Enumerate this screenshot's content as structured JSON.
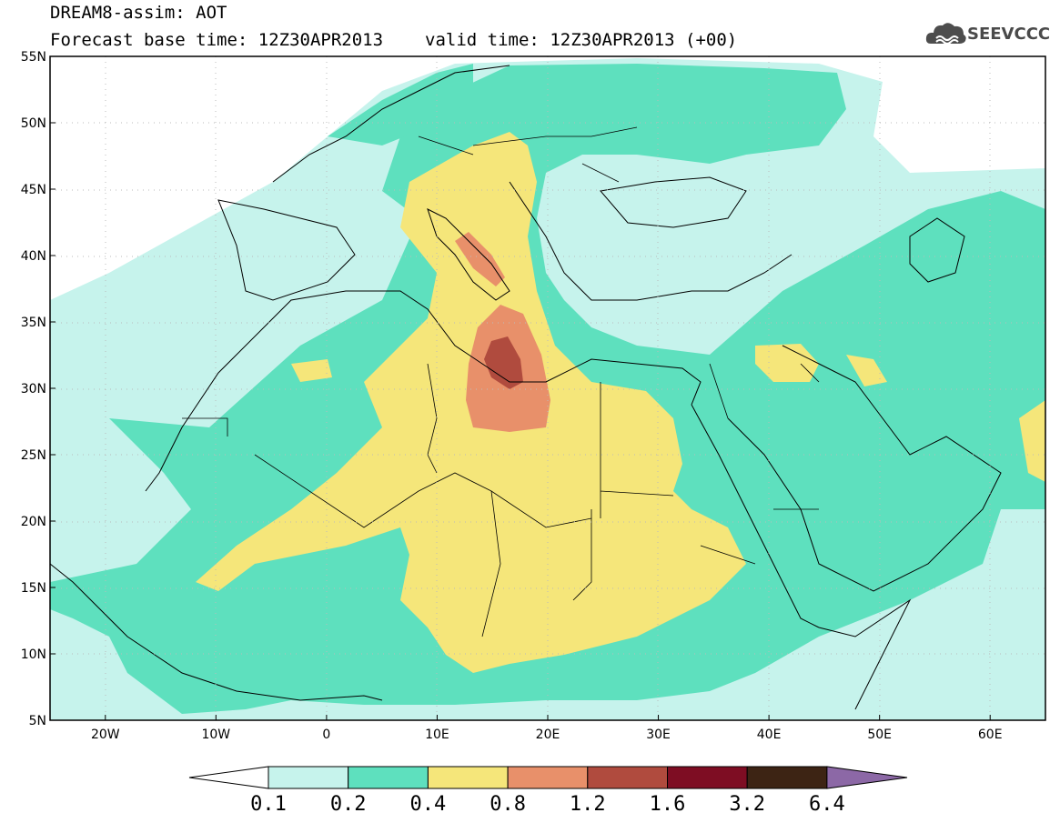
{
  "header": {
    "line1": "DREAM8-assim: AOT",
    "forecast_base": "Forecast base time: 12Z30APR2013",
    "valid_time": "valid time: 12Z30APR2013 (+00)"
  },
  "logo": {
    "text": "SEEVCCC",
    "icon": "cloud-logo-icon"
  },
  "map": {
    "projection": "lat-lon",
    "lon_range": [
      -25,
      65
    ],
    "lat_range": [
      5,
      55
    ],
    "y_ticks": [
      "55N",
      "50N",
      "45N",
      "40N",
      "35N",
      "30N",
      "25N",
      "20N",
      "15N",
      "10N",
      "5N"
    ],
    "x_ticks": [
      "20W",
      "10W",
      "0",
      "10E",
      "20E",
      "30E",
      "40E",
      "50E",
      "60E"
    ]
  },
  "legend": {
    "thresholds": [
      "0.1",
      "0.2",
      "0.4",
      "0.8",
      "1.2",
      "1.6",
      "3.2",
      "6.4"
    ],
    "colors": [
      "#ffffff",
      "#c6f3ec",
      "#5ee0be",
      "#f5e67a",
      "#e8906a",
      "#b04b3e",
      "#7e0d23",
      "#3d2414",
      "#8c68a6"
    ]
  }
}
